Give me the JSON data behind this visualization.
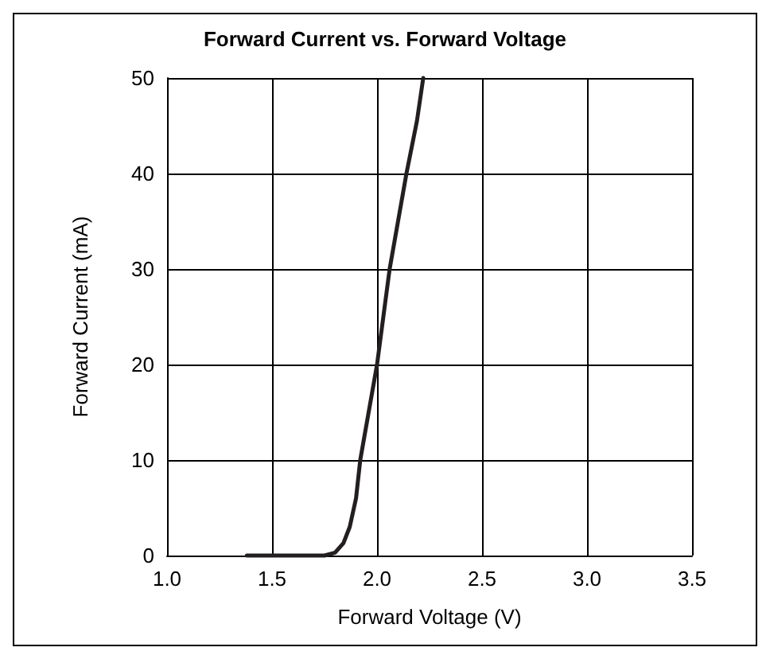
{
  "chart_data": {
    "type": "line",
    "title": "Forward Current vs. Forward Voltage",
    "xlabel": "Forward Voltage (V)",
    "ylabel": "Forward Current (mA)",
    "x": [
      1.38,
      1.6,
      1.75,
      1.8,
      1.84,
      1.87,
      1.9,
      1.92,
      1.96,
      2.0,
      2.03,
      2.06,
      2.1,
      2.14,
      2.19,
      2.22
    ],
    "series": [
      {
        "color": "#231f20",
        "values": [
          0,
          0,
          0,
          0.3,
          1.3,
          3,
          6,
          10,
          15,
          20,
          25,
          30,
          35,
          40,
          45.5,
          50
        ]
      }
    ],
    "xlim": [
      1.0,
      3.5
    ],
    "xticks": [
      {
        "value": 1,
        "label": "1.0"
      },
      1.5,
      {
        "value": 2,
        "label": "2.0"
      },
      2.5,
      {
        "value": 3,
        "label": "3.0"
      },
      3.5
    ],
    "ylim": [
      0,
      50
    ],
    "yticks": [
      0,
      10,
      20,
      30,
      40,
      50
    ],
    "grid": true,
    "marker": "none",
    "line_style": "solid"
  }
}
